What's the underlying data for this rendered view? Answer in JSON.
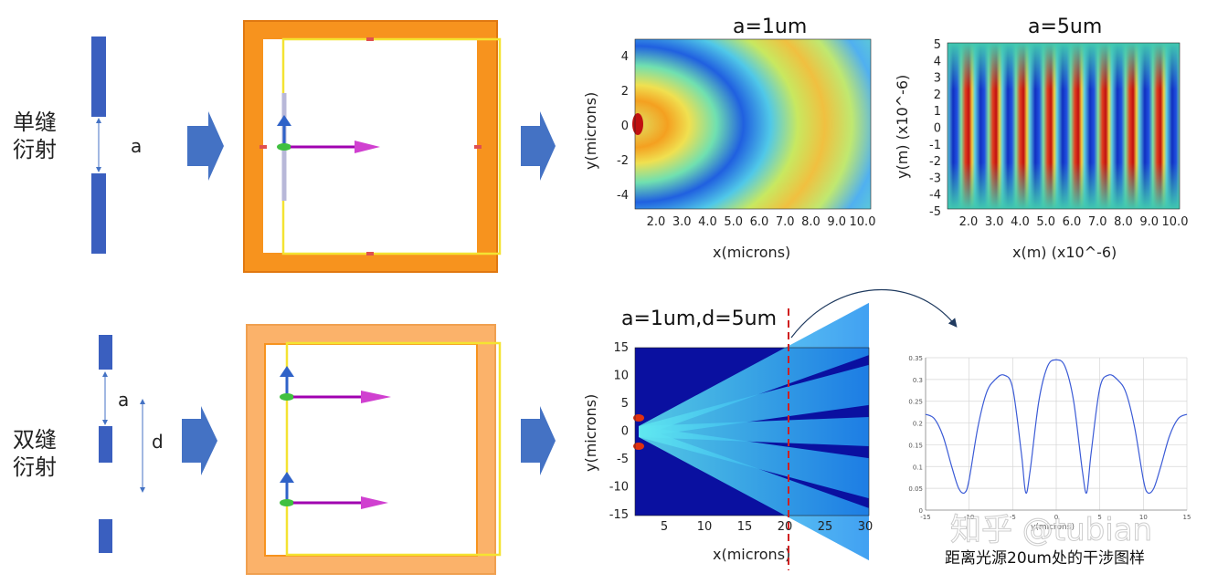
{
  "row1": {
    "label_line1": "单缝",
    "label_line2": "衍射",
    "slit_label": "a"
  },
  "row2": {
    "label_line1": "双缝",
    "label_line2": "衍射",
    "slit_label_a": "a",
    "slit_label_d": "d"
  },
  "plot_a1": {
    "title": "a=1um",
    "xlabel": "x(microns)",
    "ylabel": "y(microns)",
    "xticks": [
      "2.0",
      "3.0",
      "4.0",
      "5.0",
      "6.0",
      "7.0",
      "8.0",
      "9.0",
      "10.0"
    ],
    "yticks": [
      "4",
      "2",
      "0",
      "-2",
      "-4"
    ]
  },
  "plot_a5": {
    "title": "a=5um",
    "xlabel": "x(m) (x10^-6)",
    "ylabel": "y(m) (x10^-6)",
    "xticks": [
      "2.0",
      "3.0",
      "4.0",
      "5.0",
      "6.0",
      "7.0",
      "8.0",
      "9.0",
      "10.0"
    ],
    "yticks": [
      "5",
      "4",
      "3",
      "2",
      "1",
      "0",
      "-1",
      "-2",
      "-3",
      "-4",
      "-5"
    ]
  },
  "plot_double": {
    "title": "a=1um,d=5um",
    "xlabel": "x(microns)",
    "ylabel": "y(microns)",
    "xticks": [
      "5",
      "10",
      "15",
      "20",
      "25",
      "30"
    ],
    "yticks": [
      "15",
      "10",
      "5",
      "0",
      "-5",
      "-10",
      "-15"
    ]
  },
  "chart_data": {
    "type": "line",
    "title": "",
    "caption": "距离光源20um处的干涉图样",
    "xlabel": "y(microns)",
    "ylabel": "",
    "xlim": [
      -15,
      15
    ],
    "ylim": [
      0,
      0.35
    ],
    "xticks": [
      "-15",
      "-10",
      "-5",
      "0",
      "5",
      "10",
      "15"
    ],
    "yticks": [
      "0.35",
      "0.3",
      "0.25",
      "0.2",
      "0.15",
      "0.1",
      "0.05",
      "0"
    ],
    "grid": true,
    "x": [
      -15,
      -14,
      -13,
      -12,
      -11.2,
      -10.5,
      -10,
      -9,
      -8,
      -7,
      -6,
      -5,
      -4,
      -3.5,
      -3,
      -2,
      -1,
      0,
      1,
      2,
      3,
      3.5,
      4,
      5,
      6,
      7,
      8,
      9,
      10,
      10.5,
      11.2,
      12,
      13,
      14,
      15
    ],
    "values": [
      0.22,
      0.21,
      0.17,
      0.1,
      0.05,
      0.04,
      0.07,
      0.19,
      0.27,
      0.3,
      0.31,
      0.28,
      0.13,
      0.04,
      0.09,
      0.25,
      0.33,
      0.345,
      0.33,
      0.25,
      0.09,
      0.04,
      0.13,
      0.28,
      0.31,
      0.3,
      0.27,
      0.19,
      0.07,
      0.04,
      0.05,
      0.1,
      0.17,
      0.21,
      0.22
    ],
    "color": "#3b5bd6"
  },
  "watermark": "知乎 @tubian",
  "colors": {
    "arrow": "#4472c4",
    "slit": "#3a5fbf",
    "frame_dark": "#f7931e",
    "frame_light": "#fbb26a",
    "yellow": "#f4e332",
    "magenta": "#b000c0"
  }
}
